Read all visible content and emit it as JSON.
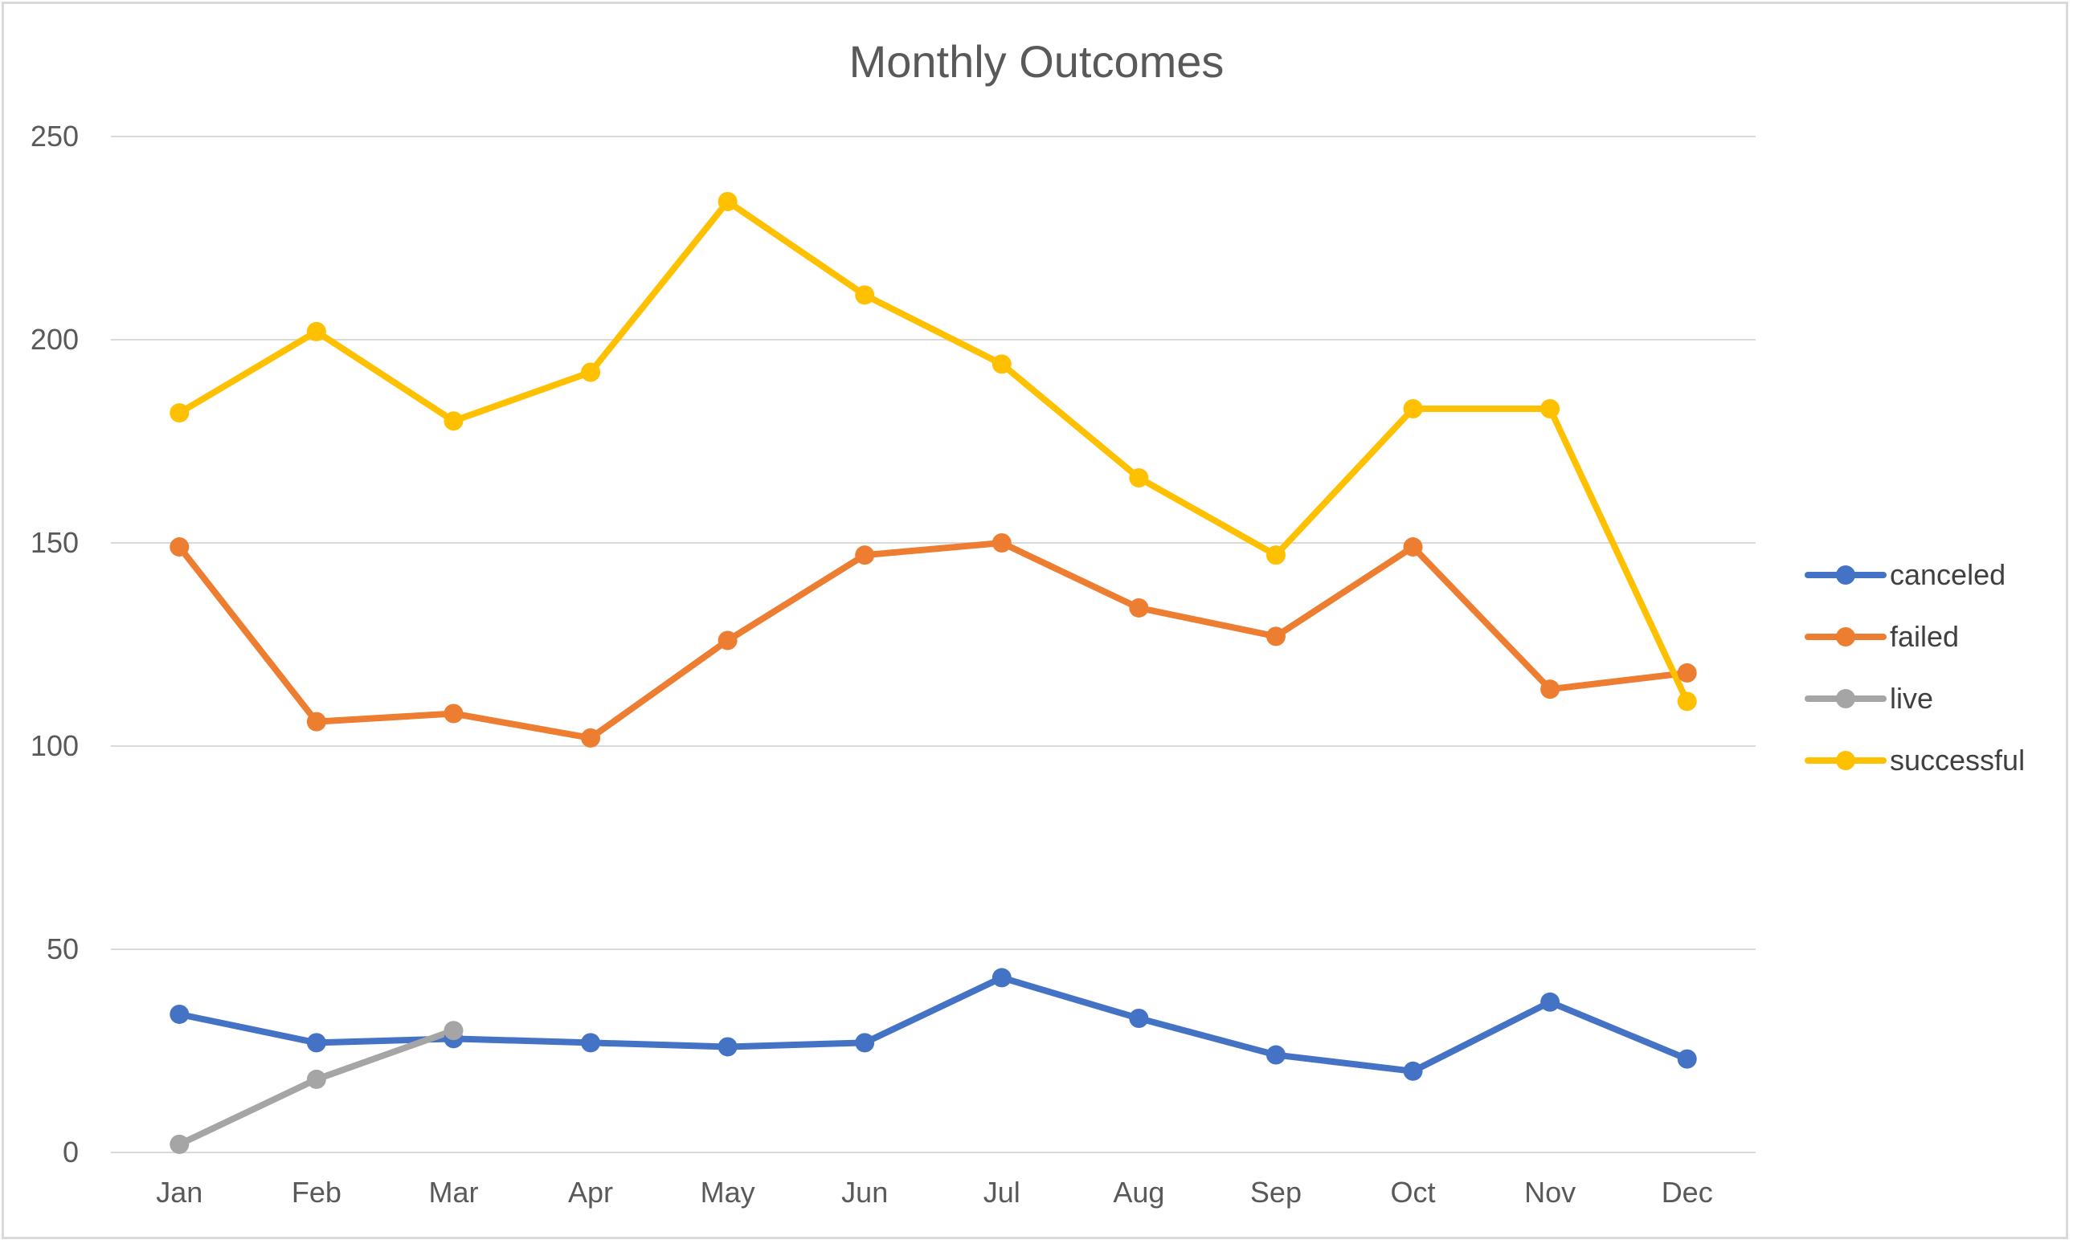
{
  "chart_data": {
    "type": "line",
    "title": "Monthly Outcomes",
    "xlabel": "",
    "ylabel": "",
    "categories": [
      "Jan",
      "Feb",
      "Mar",
      "Apr",
      "May",
      "Jun",
      "Jul",
      "Aug",
      "Sep",
      "Oct",
      "Nov",
      "Dec"
    ],
    "ylim": [
      0,
      250
    ],
    "yticks": [
      0,
      50,
      100,
      150,
      200,
      250
    ],
    "grid": true,
    "legend_position": "right",
    "series": [
      {
        "name": "canceled",
        "color": "#4472c4",
        "values": [
          34,
          27,
          28,
          27,
          26,
          27,
          43,
          33,
          24,
          20,
          37,
          23
        ]
      },
      {
        "name": "failed",
        "color": "#ed7d31",
        "values": [
          149,
          106,
          108,
          102,
          126,
          147,
          150,
          134,
          127,
          149,
          114,
          118
        ]
      },
      {
        "name": "live",
        "color": "#a5a5a5",
        "values": [
          2,
          18,
          30,
          null,
          null,
          null,
          null,
          null,
          null,
          null,
          null,
          null
        ]
      },
      {
        "name": "successful",
        "color": "#ffc000",
        "values": [
          182,
          202,
          180,
          192,
          234,
          211,
          194,
          166,
          147,
          183,
          183,
          111
        ]
      }
    ]
  }
}
